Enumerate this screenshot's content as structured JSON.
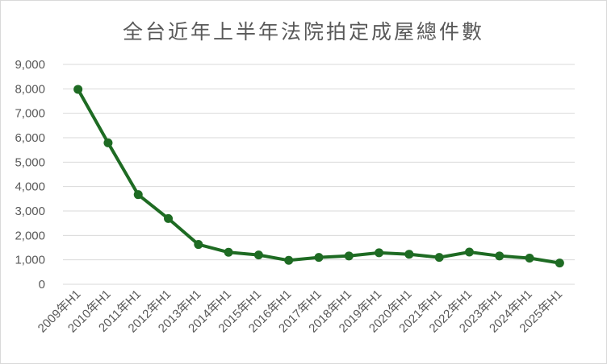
{
  "chart_data": {
    "type": "line",
    "title": "全台近年上半年法院拍定成屋總件數",
    "xlabel": "",
    "ylabel": "",
    "ylim": [
      0,
      9000
    ],
    "yticks": [
      "0",
      "1,000",
      "2,000",
      "3,000",
      "4,000",
      "5,000",
      "6,000",
      "7,000",
      "8,000",
      "9,000"
    ],
    "ytick_values": [
      0,
      1000,
      2000,
      3000,
      4000,
      5000,
      6000,
      7000,
      8000,
      9000
    ],
    "grid": true,
    "legend": "none",
    "categories": [
      "2009年H1",
      "2010年H1",
      "2011年H1",
      "2012年H1",
      "2013年H1",
      "2014年H1",
      "2015年H1",
      "2016年H1",
      "2017年H1",
      "2018年H1",
      "2019年H1",
      "2020年H1",
      "2021年H1",
      "2022年H1",
      "2023年H1",
      "2024年H1",
      "2025年H1"
    ],
    "series": [
      {
        "values": [
          7980,
          5790,
          3670,
          2690,
          1630,
          1310,
          1200,
          980,
          1100,
          1160,
          1290,
          1230,
          1100,
          1320,
          1160,
          1070,
          870
        ]
      }
    ],
    "line_color": "#1e6b23",
    "grid_color": "#d9d9d9"
  }
}
